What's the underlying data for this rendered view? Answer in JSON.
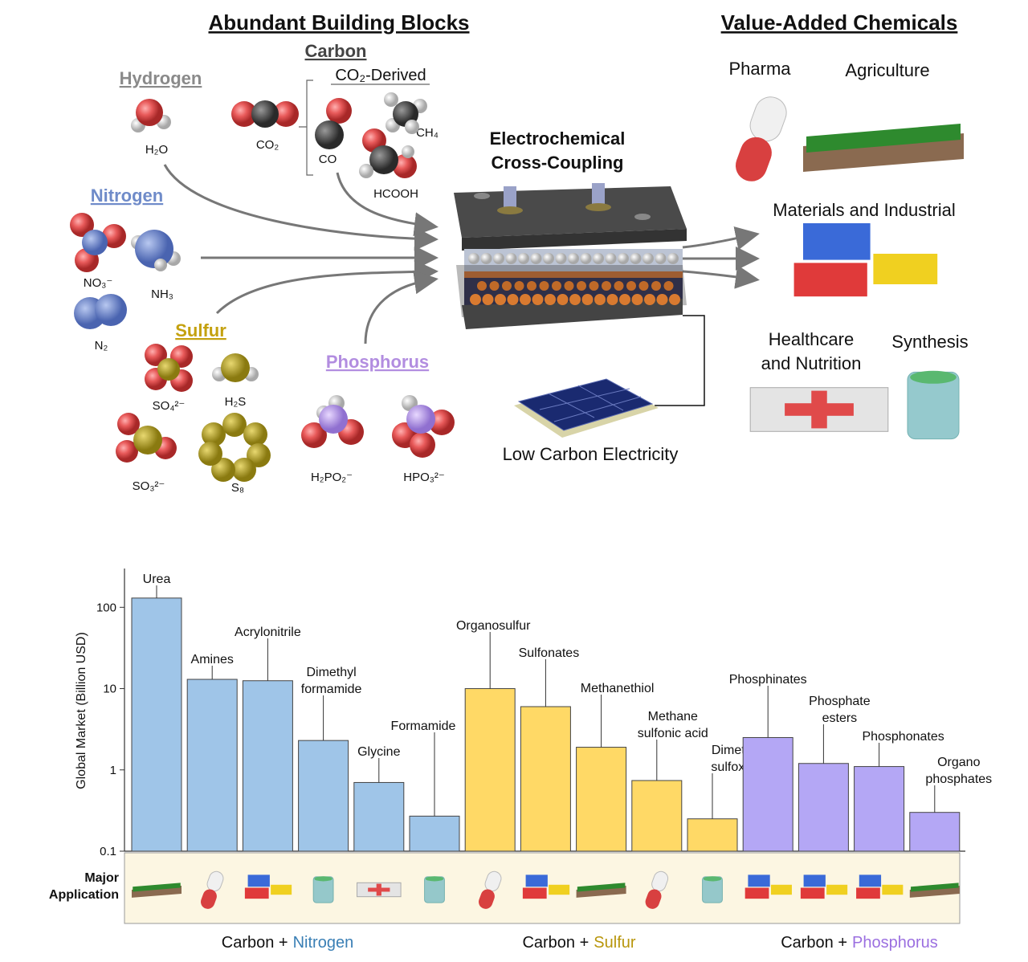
{
  "header": {
    "left_title": "Abundant Building Blocks",
    "right_title": "Value-Added Chemicals"
  },
  "elements": [
    {
      "label": "Hydrogen",
      "color": "#8a8a8a"
    },
    {
      "label": "Carbon",
      "color": "#444444"
    },
    {
      "label": "Nitrogen",
      "color": "#6f8bc9"
    },
    {
      "label": "Sulfur",
      "color": "#c4a10f"
    },
    {
      "label": "Phosphorus",
      "color": "#b28de0"
    }
  ],
  "co2_derived": "CO₂-Derived",
  "molecules": [
    "H₂O",
    "CO₂",
    "CO",
    "CH₄",
    "HCOOH",
    "NO₃⁻",
    "NH₃",
    "N₂",
    "SO₄²⁻",
    "H₂S",
    "SO₃²⁻",
    "S₈",
    "H₂PO₂⁻",
    "HPO₃²⁻"
  ],
  "reactor": "Electrochemical\nCross-Coupling",
  "electricity": "Low Carbon Electricity",
  "products": [
    "Pharma",
    "Agriculture",
    "Materials and Industrial",
    "Healthcare\nand Nutrition",
    "Synthesis"
  ],
  "chart_data": {
    "type": "bar",
    "y_label": "Global Market (Billion USD)",
    "application_label": "Major\nApplication",
    "categories": [
      "Urea",
      "Amines",
      "Acrylonitrile",
      "Dimethyl\nformamide",
      "Glycine",
      "Formamide",
      "Organosulfur",
      "Sulfonates",
      "Methanethiol",
      "Methane\nsulfonic acid",
      "Dimethyl\nsulfoxide",
      "Phosphinates",
      "Phosphate\nesters",
      "Phosphonates",
      "Organo\nphosphates"
    ],
    "values": [
      130,
      13,
      12.5,
      2.3,
      0.7,
      0.27,
      10,
      6,
      1.9,
      0.74,
      0.25,
      2.5,
      1.2,
      1.1,
      0.3
    ],
    "colors": [
      "#9fc5e8",
      "#9fc5e8",
      "#9fc5e8",
      "#9fc5e8",
      "#9fc5e8",
      "#9fc5e8",
      "#ffd966",
      "#ffd966",
      "#ffd966",
      "#ffd966",
      "#ffd966",
      "#b4a7f5",
      "#b4a7f5",
      "#b4a7f5",
      "#b4a7f5"
    ],
    "ylim": [
      0.1,
      300
    ],
    "yticks": [
      0.1,
      1,
      10,
      100
    ],
    "log_scale": true,
    "groups": [
      {
        "prefix": "Carbon +",
        "element": "Nitrogen",
        "color": "#3a7fb5"
      },
      {
        "prefix": "Carbon +",
        "element": "Sulfur",
        "color": "#b8960c"
      },
      {
        "prefix": "Carbon +",
        "element": "Phosphorus",
        "color": "#9b6fe0"
      }
    ]
  }
}
